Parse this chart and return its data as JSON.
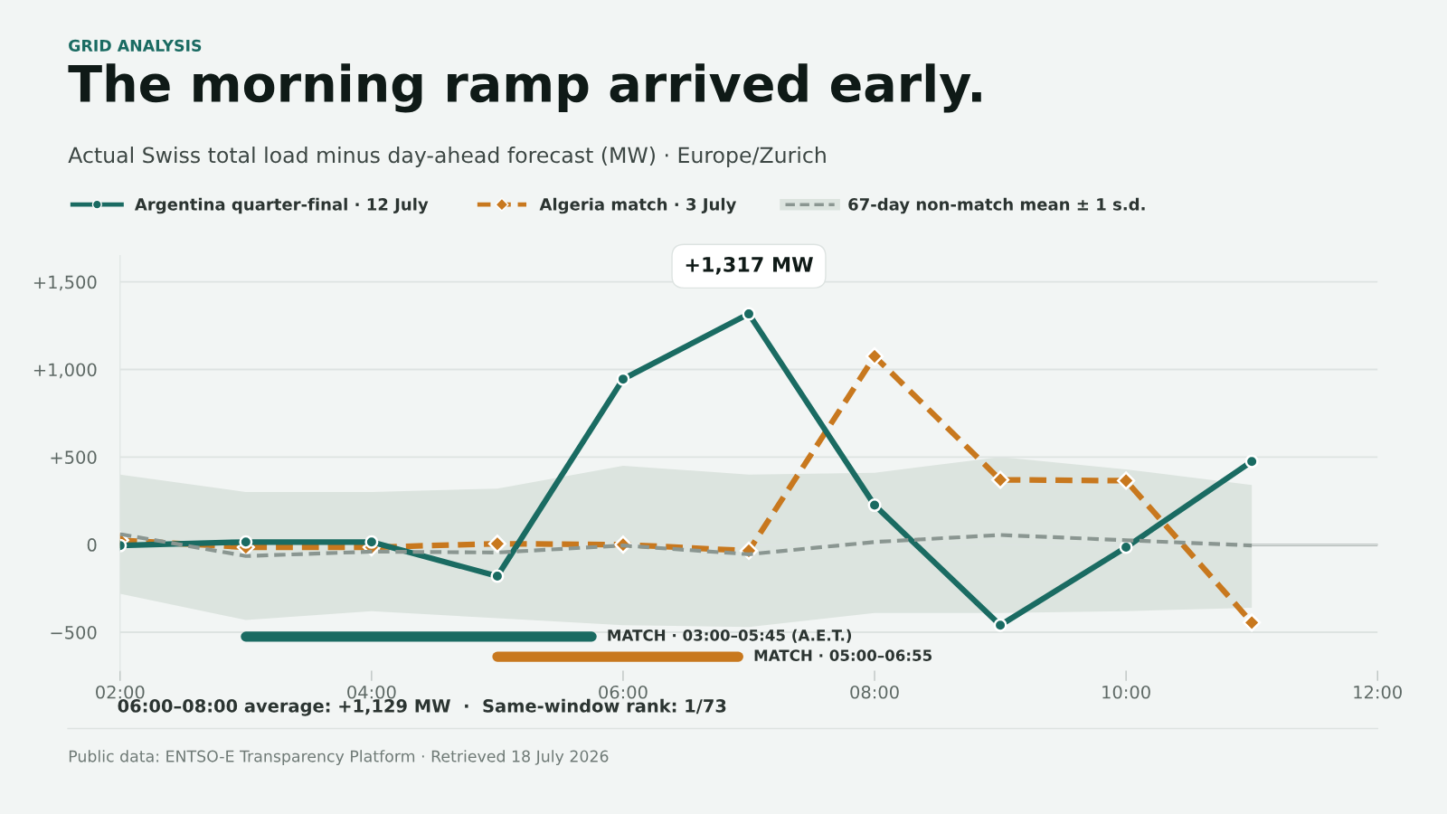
{
  "chart_data": {
    "type": "line",
    "title": "The morning ramp arrived early.",
    "subtitle": "Actual Swiss total load minus day-ahead forecast (MW) · Europe/Zurich",
    "x": [
      2,
      3,
      4,
      5,
      6,
      7,
      8,
      9,
      10,
      11
    ],
    "series": [
      {
        "name": "Argentina quarter-final · 12 July",
        "color": "#1a6b62",
        "marker": "circle",
        "line_style": "solid",
        "values": [
          -5,
          15,
          15,
          -180,
          945,
          1317,
          225,
          -460,
          -15,
          475
        ]
      },
      {
        "name": "Algeria match · 3 July",
        "color": "#c8781e",
        "marker": "diamond",
        "line_style": "dashed",
        "values": [
          25,
          -15,
          -15,
          5,
          0,
          -35,
          1075,
          370,
          365,
          -445
        ]
      },
      {
        "name": "67-day non-match mean ± 1 s.d.",
        "color": "#8a9691",
        "marker": "none",
        "line_style": "dashed",
        "values": [
          60,
          -65,
          -40,
          -45,
          -5,
          -55,
          15,
          55,
          25,
          -5
        ],
        "lower": [
          -280,
          -430,
          -380,
          -420,
          -460,
          -470,
          -390,
          -390,
          -380,
          -360
        ],
        "upper": [
          400,
          300,
          300,
          320,
          450,
          400,
          410,
          500,
          430,
          340
        ]
      },
      {
        "name": "MATCH · 03:00–05:45 (A.E.T.)",
        "color": "#1a6b62",
        "x": [
          3,
          5.75
        ],
        "values": [
          -525,
          -525
        ],
        "line_style": "solid"
      },
      {
        "name": "MATCH · 05:00–06:55",
        "color": "#c8781e",
        "x": [
          5,
          6.9167
        ],
        "values": [
          -640,
          -640
        ],
        "line_style": "solid"
      }
    ],
    "xlim": [
      2,
      12
    ],
    "ylim": [
      -720,
      1650
    ],
    "xticks": [
      {
        "value": 2,
        "label": "02:00"
      },
      {
        "value": 4,
        "label": "04:00"
      },
      {
        "value": 6,
        "label": "06:00"
      },
      {
        "value": 8,
        "label": "08:00"
      },
      {
        "value": 10,
        "label": "10:00"
      },
      {
        "value": 12,
        "label": "12:00"
      }
    ],
    "yticks": [
      {
        "value": -500,
        "label": "−500"
      },
      0,
      {
        "value": 500,
        "label": "+500"
      },
      {
        "value": 1000,
        "label": "+1,000"
      },
      {
        "value": 1500,
        "label": "+1,500"
      }
    ],
    "grid": "y",
    "legend": "top left",
    "ref_lines": [
      {
        "axis": "y",
        "value": 0,
        "label": null,
        "color": "#6f7a76"
      }
    ],
    "annotations": [
      {
        "text": "+1,317 MW",
        "x": 7,
        "y": 1317
      },
      "GRID ANALYSIS",
      "06:00–08:00 average: +1,129 MW  ·  Same-window rank: 1/73",
      "Public data: ENTSO-E Transparency Platform · Retrieved 18 July 2026"
    ]
  }
}
